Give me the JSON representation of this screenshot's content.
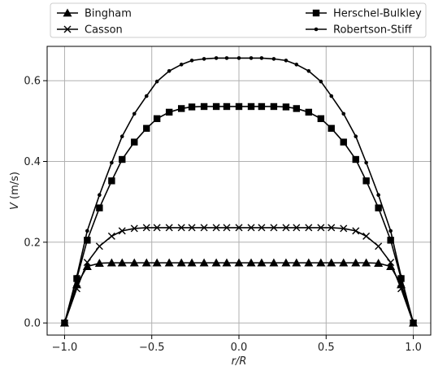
{
  "chart_data": {
    "type": "line",
    "title": "",
    "xlabel": "r/R",
    "ylabel_italic": "V",
    "ylabel_rest": " (m/s)",
    "xlim": [
      -1.1,
      1.1
    ],
    "ylim": [
      -0.03,
      0.685
    ],
    "xticks": [
      -1.0,
      -0.5,
      0.0,
      0.5,
      1.0
    ],
    "xtick_labels": [
      "−1.0",
      "−0.5",
      "0.0",
      "0.5",
      "1.0"
    ],
    "yticks": [
      0.0,
      0.2,
      0.4,
      0.6
    ],
    "ytick_labels": [
      "0.0",
      "0.2",
      "0.4",
      "0.6"
    ],
    "grid": true,
    "legend_placement": "top",
    "series": [
      {
        "name": "Bingham",
        "marker": "triangle",
        "x": [
          -1.0,
          -0.93,
          -0.87,
          -0.8,
          -0.73,
          -0.67,
          -0.6,
          -0.53,
          -0.47,
          -0.4,
          -0.33,
          -0.27,
          -0.2,
          -0.13,
          -0.07,
          0.0,
          0.07,
          0.13,
          0.2,
          0.27,
          0.33,
          0.4,
          0.47,
          0.53,
          0.6,
          0.67,
          0.73,
          0.8,
          0.87,
          0.93,
          1.0
        ],
        "y": [
          0.0,
          0.095,
          0.14,
          0.148,
          0.149,
          0.149,
          0.149,
          0.149,
          0.149,
          0.149,
          0.149,
          0.149,
          0.149,
          0.149,
          0.149,
          0.149,
          0.149,
          0.149,
          0.149,
          0.149,
          0.149,
          0.149,
          0.149,
          0.149,
          0.149,
          0.149,
          0.149,
          0.148,
          0.14,
          0.095,
          0.0
        ]
      },
      {
        "name": "Casson",
        "marker": "x",
        "x": [
          -1.0,
          -0.93,
          -0.87,
          -0.8,
          -0.73,
          -0.67,
          -0.6,
          -0.53,
          -0.47,
          -0.4,
          -0.33,
          -0.27,
          -0.2,
          -0.13,
          -0.07,
          0.0,
          0.07,
          0.13,
          0.2,
          0.27,
          0.33,
          0.4,
          0.47,
          0.53,
          0.6,
          0.67,
          0.73,
          0.8,
          0.87,
          0.93,
          1.0
        ],
        "y": [
          0.0,
          0.085,
          0.15,
          0.19,
          0.215,
          0.228,
          0.234,
          0.236,
          0.236,
          0.236,
          0.236,
          0.236,
          0.236,
          0.236,
          0.236,
          0.236,
          0.236,
          0.236,
          0.236,
          0.236,
          0.236,
          0.236,
          0.236,
          0.236,
          0.234,
          0.228,
          0.215,
          0.19,
          0.15,
          0.085,
          0.0
        ]
      },
      {
        "name": "Herschel-Bulkley",
        "marker": "square",
        "x": [
          -1.0,
          -0.93,
          -0.87,
          -0.8,
          -0.73,
          -0.67,
          -0.6,
          -0.53,
          -0.47,
          -0.4,
          -0.33,
          -0.27,
          -0.2,
          -0.13,
          -0.07,
          0.0,
          0.07,
          0.13,
          0.2,
          0.27,
          0.33,
          0.4,
          0.47,
          0.53,
          0.6,
          0.67,
          0.73,
          0.8,
          0.87,
          0.93,
          1.0
        ],
        "y": [
          0.0,
          0.11,
          0.205,
          0.285,
          0.352,
          0.405,
          0.448,
          0.482,
          0.506,
          0.522,
          0.531,
          0.535,
          0.536,
          0.536,
          0.536,
          0.536,
          0.536,
          0.536,
          0.536,
          0.535,
          0.531,
          0.522,
          0.506,
          0.482,
          0.448,
          0.405,
          0.352,
          0.285,
          0.205,
          0.11,
          0.0
        ]
      },
      {
        "name": "Robertson-Stiff",
        "marker": "dot",
        "x": [
          -1.0,
          -0.93,
          -0.87,
          -0.8,
          -0.73,
          -0.67,
          -0.6,
          -0.53,
          -0.47,
          -0.4,
          -0.33,
          -0.27,
          -0.2,
          -0.13,
          -0.07,
          0.0,
          0.07,
          0.13,
          0.2,
          0.27,
          0.33,
          0.4,
          0.47,
          0.53,
          0.6,
          0.67,
          0.73,
          0.8,
          0.87,
          0.93,
          1.0
        ],
        "y": [
          0.0,
          0.115,
          0.228,
          0.317,
          0.397,
          0.462,
          0.518,
          0.562,
          0.598,
          0.624,
          0.64,
          0.65,
          0.654,
          0.656,
          0.656,
          0.656,
          0.656,
          0.656,
          0.654,
          0.65,
          0.64,
          0.624,
          0.598,
          0.562,
          0.518,
          0.462,
          0.397,
          0.317,
          0.228,
          0.115,
          0.0
        ]
      }
    ]
  }
}
